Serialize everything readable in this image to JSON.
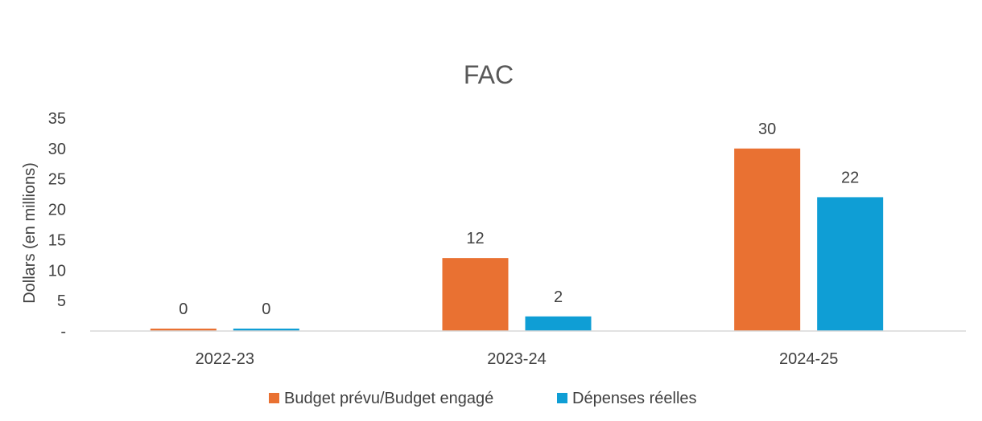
{
  "chart_data": {
    "type": "bar",
    "title": "FAC",
    "ylabel": "Dollars (en millions)",
    "xlabel": "",
    "categories": [
      "2022-23",
      "2023-24",
      "2024-25"
    ],
    "series": [
      {
        "name": "Budget prévu/Budget engagé",
        "values": [
          0,
          12,
          30
        ],
        "labels": [
          "0",
          "12",
          "30"
        ],
        "color": "#E97132"
      },
      {
        "name": "Dépenses réelles",
        "values": [
          0,
          2.4,
          22
        ],
        "labels": [
          "0",
          "2",
          "22"
        ],
        "color": "#0F9ED5"
      }
    ],
    "ylim": [
      0,
      35
    ],
    "yticks": [
      0,
      5,
      10,
      15,
      20,
      25,
      30,
      35
    ],
    "ytick_labels": [
      "-",
      "5",
      "10",
      "15",
      "20",
      "25",
      "30",
      "35"
    ],
    "grid": false,
    "legend": "bottom"
  }
}
